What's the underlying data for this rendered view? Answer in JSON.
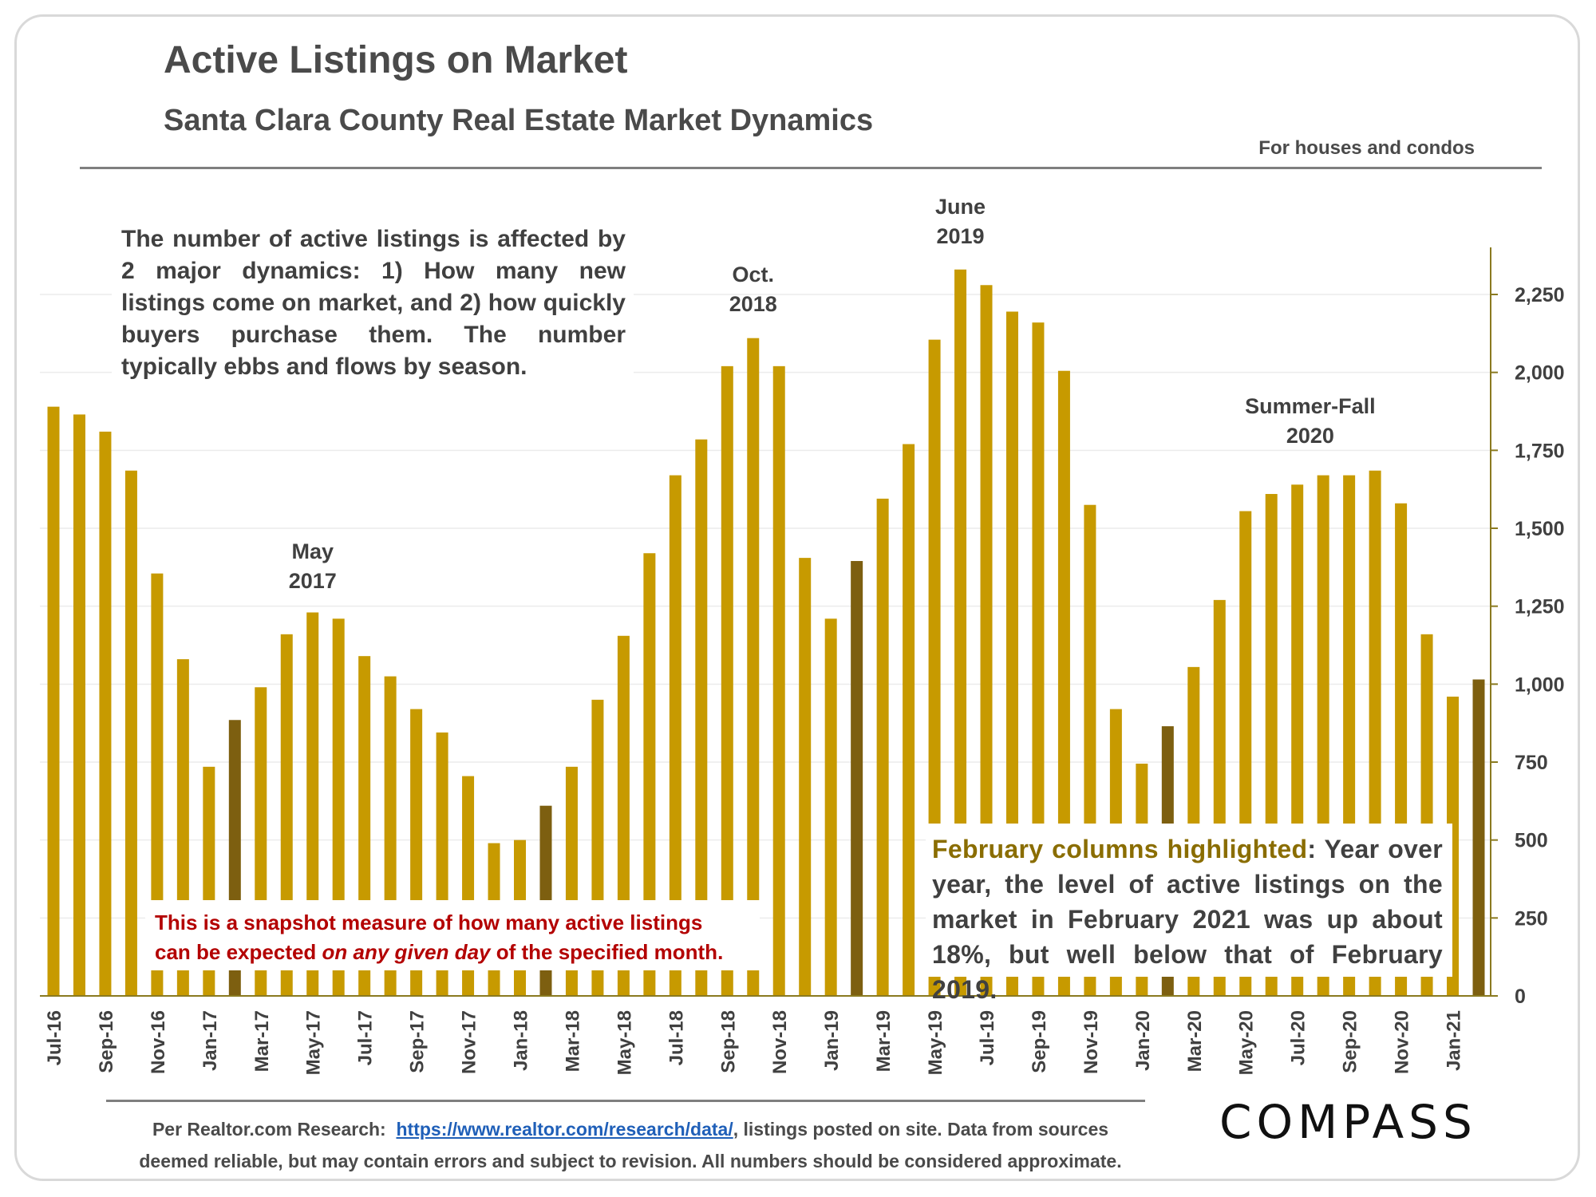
{
  "header": {
    "title": "Active Listings on Market",
    "subtitle": "Santa Clara County Real Estate Market Dynamics",
    "note": "For houses and condos"
  },
  "intro_text": "The number of active listings is affected by 2 major dynamics: 1) How many new listings come on market, and 2) how quickly buyers purchase them. The number typically ebbs and flows by season.",
  "snapshot": {
    "line1": "This is a snapshot measure of how many active listings",
    "line2_pre": "can be expected ",
    "line2_em": "on any given day",
    "line2_post": " of the specified month."
  },
  "february_note": {
    "highlight": "February columns highlighted",
    "text": ": Year over year, the level of active listings on the market in February 2021 was up about 18%, but well below that of February 2019."
  },
  "footer": {
    "prefix": "Per Realtor.com Research:",
    "link": "https://www.realtor.com/research/data/",
    "line1_suffix": ", listings posted on site. Data from sources",
    "line2": "deemed reliable, but may contain errors and subject to revision. All numbers should be considered approximate."
  },
  "logo": "COMPASS",
  "colors": {
    "bar": "#c79a00",
    "february_bar": "#7d5f10",
    "axis": "#8a7a20"
  },
  "chart_data": {
    "type": "bar",
    "categories": [
      "Jul-16",
      "Aug-16",
      "Sep-16",
      "Oct-16",
      "Nov-16",
      "Dec-16",
      "Jan-17",
      "Feb-17",
      "Mar-17",
      "Apr-17",
      "May-17",
      "Jun-17",
      "Jul-17",
      "Aug-17",
      "Sep-17",
      "Oct-17",
      "Nov-17",
      "Dec-17",
      "Jan-18",
      "Feb-18",
      "Mar-18",
      "Apr-18",
      "May-18",
      "Jun-18",
      "Jul-18",
      "Aug-18",
      "Sep-18",
      "Oct-18",
      "Nov-18",
      "Dec-18",
      "Jan-19",
      "Feb-19",
      "Mar-19",
      "Apr-19",
      "May-19",
      "Jun-19",
      "Jul-19",
      "Aug-19",
      "Sep-19",
      "Oct-19",
      "Nov-19",
      "Dec-19",
      "Jan-20",
      "Feb-20",
      "Mar-20",
      "Apr-20",
      "May-20",
      "Jun-20",
      "Jul-20",
      "Aug-20",
      "Sep-20",
      "Oct-20",
      "Nov-20",
      "Dec-20",
      "Jan-21",
      "Feb-21"
    ],
    "tick_labels": [
      "Jul-16",
      "Sep-16",
      "Nov-16",
      "Jan-17",
      "Mar-17",
      "May-17",
      "Jul-17",
      "Sep-17",
      "Nov-17",
      "Jan-18",
      "Mar-18",
      "May-18",
      "Jul-18",
      "Sep-18",
      "Nov-18",
      "Jan-19",
      "Mar-19",
      "May-19",
      "Jul-19",
      "Sep-19",
      "Nov-19",
      "Jan-20",
      "Mar-20",
      "May-20",
      "Jul-20",
      "Sep-20",
      "Nov-20",
      "Jan-21"
    ],
    "values": [
      1890,
      1865,
      1810,
      1685,
      1355,
      1080,
      735,
      885,
      990,
      1160,
      1230,
      1210,
      1090,
      1025,
      920,
      845,
      705,
      490,
      500,
      610,
      735,
      950,
      1155,
      1420,
      1670,
      1785,
      2020,
      2110,
      2020,
      1405,
      1210,
      1395,
      1595,
      1770,
      2105,
      2330,
      2280,
      2195,
      2160,
      2005,
      1575,
      920,
      745,
      865,
      1055,
      1270,
      1555,
      1610,
      1640,
      1670,
      1670,
      1685,
      1580,
      1160,
      960,
      1015
    ],
    "highlighted": [
      "Feb-17",
      "Feb-18",
      "Feb-19",
      "Feb-20",
      "Feb-21"
    ],
    "ylim": [
      0,
      2400
    ],
    "yticks": [
      0,
      250,
      500,
      750,
      1000,
      1250,
      1500,
      1750,
      2000,
      2250
    ],
    "ytick_labels": [
      "0",
      "250",
      "500",
      "750",
      "1,000",
      "1,250",
      "1,500",
      "1,750",
      "2,000",
      "2,250"
    ],
    "y_axis_position": "right",
    "grid": true,
    "annotations": [
      {
        "category": "May-17",
        "lines": [
          "May",
          "2017"
        ]
      },
      {
        "category": "Oct-18",
        "lines": [
          "Oct.",
          "2018"
        ]
      },
      {
        "category": "Jun-19",
        "lines": [
          "June",
          "2019"
        ]
      },
      {
        "category": "Aug-20",
        "lines": [
          "Summer-Fall",
          "2020"
        ]
      }
    ]
  }
}
